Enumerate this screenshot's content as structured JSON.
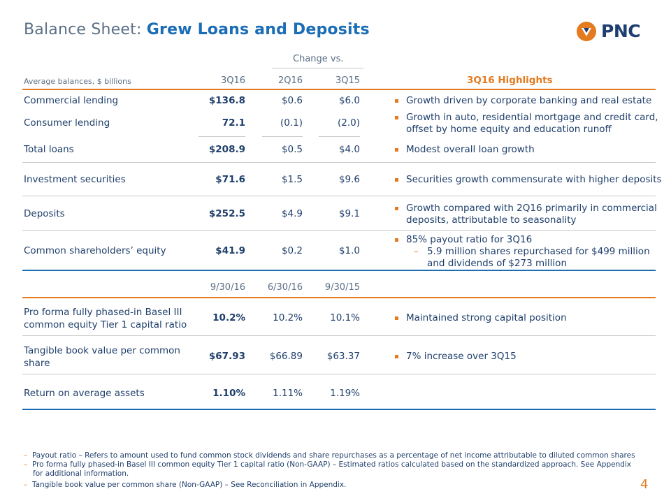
{
  "title": {
    "prefix": "Balance Sheet:",
    "bold": "Grew Loans and Deposits"
  },
  "logo": {
    "text": "PNC"
  },
  "table1": {
    "change_label": "Change vs.",
    "row_header": "Average balances, $ billions",
    "col_3q16": "3Q16",
    "col_2q16": "2Q16",
    "col_3q15": "3Q15",
    "highlights_title": "3Q16 Highlights",
    "rows": [
      {
        "label": "Commercial lending",
        "v1": "$136.8",
        "v2": "$0.6",
        "v3": "$6.0"
      },
      {
        "label": "Consumer lending",
        "v1": "72.1",
        "v2": "(0.1)",
        "v3": "(2.0)"
      },
      {
        "label": "Total loans",
        "v1": "$208.9",
        "v2": "$0.5",
        "v3": "$4.0"
      },
      {
        "label": "Investment securities",
        "v1": "$71.6",
        "v2": "$1.5",
        "v3": "$9.6"
      },
      {
        "label": "Deposits",
        "v1": "$252.5",
        "v2": "$4.9",
        "v3": "$9.1"
      },
      {
        "label": "Common shareholders’ equity",
        "v1": "$41.9",
        "v2": "$0.2",
        "v3": "$1.0"
      }
    ],
    "highlights": [
      "Growth driven by corporate banking and real estate",
      "Growth in auto, residential mortgage and credit card,",
      "offset by home equity and education runoff",
      "Modest overall loan growth",
      "Securities growth commensurate with higher deposits",
      "Growth compared with 2Q16 primarily in commercial",
      "deposits, attributable to seasonality",
      "85% payout ratio for 3Q16",
      "5.9 million shares repurchased for $499 million",
      "and dividends of $273 million"
    ]
  },
  "table2": {
    "col1": "9/30/16",
    "col2": "6/30/16",
    "col3": "9/30/15",
    "rows": [
      {
        "label1": "Pro forma fully phased-in Basel III",
        "label2": "common equity Tier 1 capital ratio",
        "v1": "10.2%",
        "v2": "10.2%",
        "v3": "10.1%",
        "highlight": "Maintained strong capital position"
      },
      {
        "label1": "Tangible book value per common",
        "label2": "share",
        "v1": "$67.93",
        "v2": "$66.89",
        "v3": "$63.37",
        "highlight": "7% increase over 3Q15"
      },
      {
        "label1": "Return on average assets",
        "label2": "",
        "v1": "1.10%",
        "v2": "1.11%",
        "v3": "1.19%",
        "highlight": ""
      }
    ]
  },
  "footnotes": [
    "Payout ratio – Refers to amount used to fund common stock dividends and share repurchases as a percentage of net income attributable to diluted common shares",
    "Pro forma fully phased-in Basel III common equity Tier 1 capital ratio (Non-GAAP) – Estimated ratios calculated based on the standardized approach. See Appendix",
    "for additional information.",
    "Tangible book value per common share (Non-GAAP) – See Reconciliation in Appendix."
  ],
  "page_number": "4",
  "colors": {
    "orange": "#e37b20",
    "blue": "#1b6db5",
    "navy": "#1f3f6b"
  }
}
